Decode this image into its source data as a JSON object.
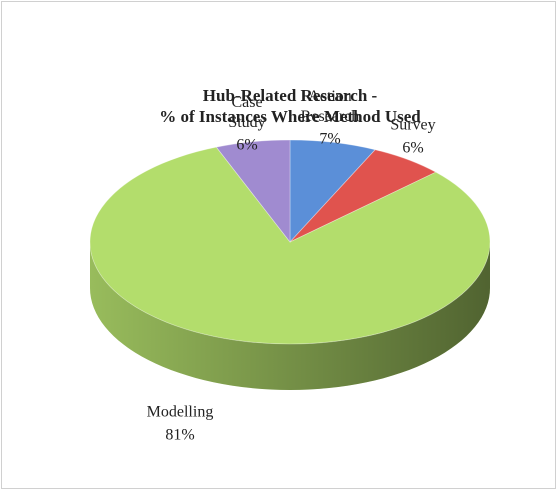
{
  "chart_data": {
    "type": "pie",
    "title": [
      "Hub-Related Research -",
      "% of Instances Where Method Used"
    ],
    "categories": [
      "Action Research",
      "Survey",
      "Modelling",
      "Case Study"
    ],
    "values": [
      7,
      6,
      81,
      6
    ],
    "value_labels": [
      "7%",
      "6%",
      "81%",
      "6%"
    ],
    "colors": [
      "#5b8fd8",
      "#e0534e",
      "#b3dd6c",
      "#a08bd0"
    ]
  }
}
